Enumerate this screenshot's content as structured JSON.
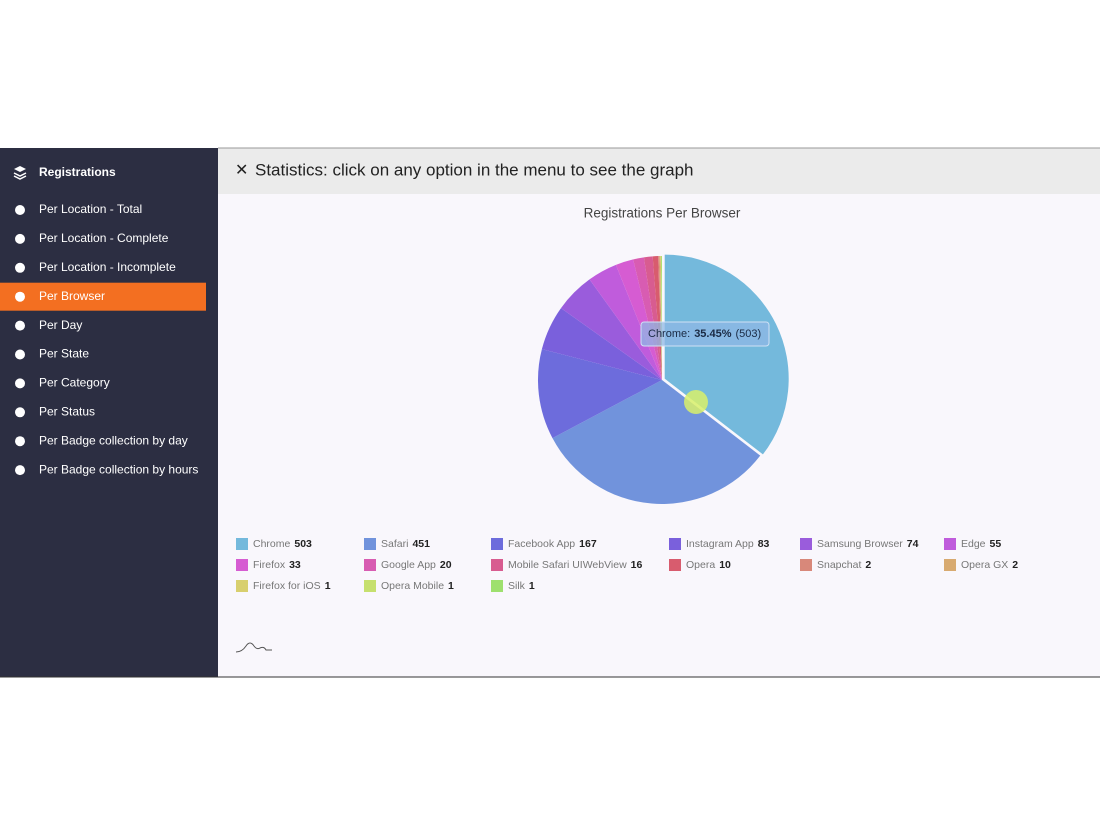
{
  "sidebar": {
    "title": "Registrations",
    "items": [
      {
        "label": "Per Location - Total"
      },
      {
        "label": "Per Location - Complete"
      },
      {
        "label": "Per Location - Incomplete"
      },
      {
        "label": "Per Browser",
        "active": true
      },
      {
        "label": "Per Day"
      },
      {
        "label": "Per State"
      },
      {
        "label": "Per Category"
      },
      {
        "label": "Per Status"
      },
      {
        "label": "Per Badge collection by day"
      },
      {
        "label": "Per Badge collection by hours"
      }
    ]
  },
  "header": {
    "title": "Statistics: click on any option in the menu to see the graph"
  },
  "chart_data": {
    "type": "pie",
    "title": "Registrations Per Browser",
    "categories": [
      "Chrome",
      "Safari",
      "Facebook App",
      "Instagram App",
      "Samsung Browser",
      "Edge",
      "Firefox",
      "Google App",
      "Mobile Safari UIWebView",
      "Opera",
      "Snapchat",
      "Opera GX",
      "Firefox for iOS",
      "Opera Mobile",
      "Silk"
    ],
    "values": [
      503,
      451,
      167,
      83,
      74,
      55,
      33,
      20,
      16,
      10,
      2,
      2,
      1,
      1,
      1
    ],
    "colors": [
      "#74b9dc",
      "#7193dc",
      "#6d6cdc",
      "#7a60dc",
      "#9a5cdc",
      "#c05cdc",
      "#d65cd2",
      "#d85cb2",
      "#d85c90",
      "#d85c6e",
      "#d8887a",
      "#d8aa70",
      "#d8cf6e",
      "#c6e06e",
      "#9ee06e"
    ],
    "tooltip": {
      "label": "Chrome:",
      "percent": "35.45%",
      "count": "(503)"
    }
  }
}
